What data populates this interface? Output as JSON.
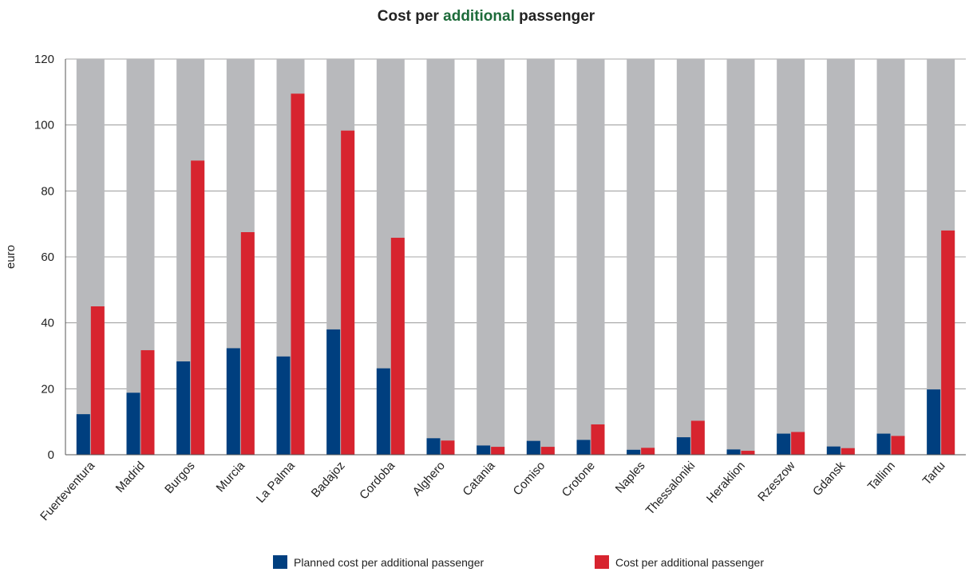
{
  "chart_data": {
    "type": "bar",
    "title_parts": [
      "Cost per ",
      "additional",
      " passenger"
    ],
    "title_highlight_color": "#1d6b3a",
    "xlabel": "",
    "ylabel": "euro",
    "ylim": [
      0,
      120
    ],
    "yticks": [
      0,
      20,
      40,
      60,
      80,
      100,
      120
    ],
    "grid": true,
    "legend_position": "bottom",
    "background_bar_color": "#b8b9bc",
    "categories": [
      "Fuerteventura",
      "Madrid",
      "Burgos",
      "Murcia",
      "La Palma",
      "Badajoz",
      "Cordoba",
      "Alghero",
      "Catania",
      "Comiso",
      "Crotone",
      "Naples",
      "Thessaloniki",
      "Heraklion",
      "Rzeszow",
      "Gdansk",
      "Tallinn",
      "Tartu"
    ],
    "series": [
      {
        "name": "Planned cost per additional passenger",
        "color": "#003f7f",
        "values": [
          12.3,
          18.8,
          28.3,
          32.3,
          29.8,
          38.0,
          26.2,
          5.0,
          2.8,
          4.2,
          4.5,
          1.5,
          5.3,
          1.6,
          6.4,
          2.5,
          6.4,
          19.8
        ]
      },
      {
        "name": "Cost per additional passenger",
        "color": "#d7242f",
        "values": [
          45.0,
          31.7,
          89.2,
          67.5,
          109.5,
          98.3,
          65.8,
          4.3,
          2.4,
          2.4,
          9.2,
          2.1,
          10.3,
          1.2,
          6.9,
          2.0,
          5.7,
          68.0
        ]
      }
    ]
  }
}
